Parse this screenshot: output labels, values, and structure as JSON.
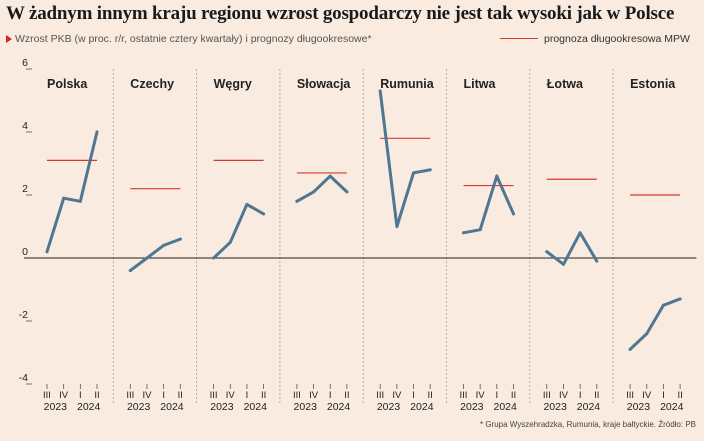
{
  "title": "W żadnym innym kraju regionu wzrost gospodarczy nie jest tak wysoki jak w Polsce",
  "subtitle": "Wzrost PKB (w proc. r/r, ostatnie cztery kwartały) i prognozy długookresowe*",
  "legend_label": "prognoza długookresowa MPW",
  "footnote": "* Grupa Wyszehradzka, Rumunia, kraje bałtyckie. Źródło: PB",
  "colors": {
    "background": "#f9ebdf",
    "series_line": "#4f7792",
    "forecast_line": "#d63a2f",
    "zero_line": "#222222",
    "grid": "#a0a0a0"
  },
  "chart_data": {
    "type": "line",
    "ylim": [
      -4,
      6
    ],
    "yticks": [
      "6",
      "4",
      "2",
      "0",
      "-2",
      "-4"
    ],
    "ytick_values": [
      6,
      4,
      2,
      0,
      -2,
      -4
    ],
    "quarter_labels": [
      "III",
      "IV",
      "I",
      "II"
    ],
    "year_labels": [
      "2023",
      "2024"
    ],
    "grid": "dashed vertical separators between panels",
    "panels": [
      {
        "name": "Polska",
        "values": [
          0.2,
          1.9,
          1.8,
          4.0
        ],
        "forecast": 3.1
      },
      {
        "name": "Czechy",
        "values": [
          -0.4,
          0.0,
          0.4,
          0.6
        ],
        "forecast": 2.2
      },
      {
        "name": "Węgry",
        "values": [
          0.0,
          0.5,
          1.7,
          1.4
        ],
        "forecast": 3.1
      },
      {
        "name": "Słowacja",
        "values": [
          1.8,
          2.1,
          2.6,
          2.1
        ],
        "forecast": 2.7
      },
      {
        "name": "Rumunia",
        "values": [
          5.3,
          1.0,
          2.7,
          2.8
        ],
        "forecast": 3.8
      },
      {
        "name": "Litwa",
        "values": [
          0.8,
          0.9,
          2.6,
          1.4
        ],
        "forecast": 2.3
      },
      {
        "name": "Łotwa",
        "values": [
          0.2,
          -0.2,
          0.8,
          -0.1
        ],
        "forecast": 2.5
      },
      {
        "name": "Estonia",
        "values": [
          -2.9,
          -2.4,
          -1.5,
          -1.3
        ],
        "forecast": 2.0
      }
    ]
  }
}
